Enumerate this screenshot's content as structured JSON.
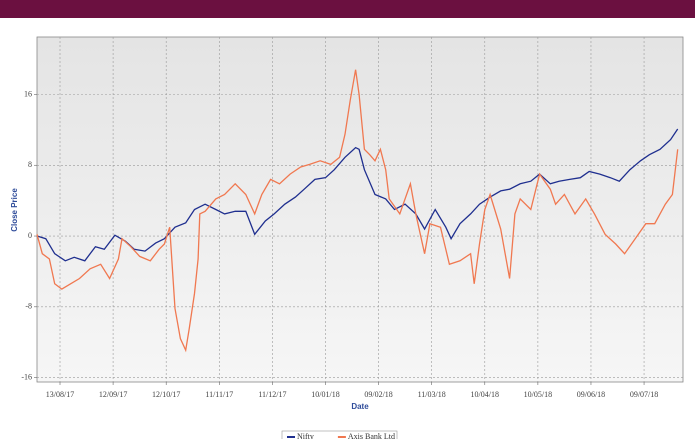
{
  "chart_data": {
    "type": "line",
    "x_label": "Date",
    "y_label": "Close Price",
    "xlim": [
      0,
      365
    ],
    "ylim": [
      -16.5,
      22.5
    ],
    "yticks": [
      16,
      8,
      0,
      -8,
      -16
    ],
    "xticks": [
      {
        "value": 13,
        "label": "13/08/17"
      },
      {
        "value": 43,
        "label": "12/09/17"
      },
      {
        "value": 73,
        "label": "12/10/17"
      },
      {
        "value": 103,
        "label": "11/11/17"
      },
      {
        "value": 133,
        "label": "11/12/17"
      },
      {
        "value": 163,
        "label": "10/01/18"
      },
      {
        "value": 193,
        "label": "09/02/18"
      },
      {
        "value": 223,
        "label": "11/03/18"
      },
      {
        "value": 253,
        "label": "10/04/18"
      },
      {
        "value": 283,
        "label": "10/05/18"
      },
      {
        "value": 313,
        "label": "09/06/18"
      },
      {
        "value": 343,
        "label": "09/07/18"
      }
    ],
    "grid": true,
    "legend": "bottom",
    "series": [
      {
        "name": "Nifty",
        "color": "#1f2f8f",
        "x": [
          0,
          5,
          10,
          16,
          21,
          27,
          33,
          38,
          44,
          50,
          55,
          61,
          67,
          72,
          78,
          84,
          89,
          95,
          101,
          106,
          112,
          118,
          123,
          129,
          134,
          140,
          146,
          151,
          157,
          163,
          168,
          174,
          180,
          182,
          185,
          191,
          197,
          202,
          208,
          214,
          219,
          225,
          231,
          234,
          239,
          245,
          250,
          256,
          262,
          267,
          273,
          279,
          284,
          290,
          295,
          301,
          307,
          312,
          318,
          324,
          329,
          335,
          341,
          346,
          352,
          358,
          362
        ],
        "values": [
          0,
          -0.3,
          -2.0,
          -2.8,
          -2.4,
          -2.8,
          -1.2,
          -1.5,
          0.1,
          -0.6,
          -1.5,
          -1.7,
          -0.8,
          -0.3,
          1.0,
          1.5,
          3.0,
          3.6,
          3.0,
          2.5,
          2.8,
          2.8,
          0.2,
          1.7,
          2.5,
          3.6,
          4.4,
          5.3,
          6.4,
          6.6,
          7.5,
          8.9,
          10.0,
          9.8,
          7.5,
          4.7,
          4.2,
          3.0,
          3.6,
          2.5,
          0.8,
          3.0,
          1.0,
          -0.3,
          1.4,
          2.5,
          3.6,
          4.4,
          5.1,
          5.3,
          5.9,
          6.2,
          7.0,
          5.9,
          6.2,
          6.4,
          6.6,
          7.3,
          7.0,
          6.6,
          6.2,
          7.5,
          8.5,
          9.2,
          9.8,
          10.9,
          12.1
        ]
      },
      {
        "name": "Axis Bank Ltd",
        "color": "#f07850",
        "x": [
          0,
          3,
          7,
          10,
          14,
          19,
          24,
          30,
          36,
          41,
          46,
          48,
          53,
          58,
          64,
          69,
          72,
          75,
          78,
          81,
          84,
          86,
          89,
          91,
          92,
          95,
          101,
          106,
          112,
          118,
          123,
          127,
          132,
          137,
          143,
          149,
          154,
          160,
          166,
          171,
          174,
          177,
          180,
          182,
          185,
          188,
          191,
          194,
          197,
          199,
          205,
          211,
          214,
          219,
          222,
          228,
          233,
          239,
          245,
          247,
          250,
          253,
          256,
          262,
          267,
          270,
          273,
          279,
          284,
          290,
          293,
          298,
          304,
          310,
          315,
          321,
          327,
          332,
          338,
          344,
          349,
          355,
          359,
          362
        ],
        "values": [
          0.2,
          -2.0,
          -2.6,
          -5.4,
          -6.0,
          -5.4,
          -4.8,
          -3.7,
          -3.2,
          -4.8,
          -2.6,
          -0.3,
          -1.2,
          -2.3,
          -2.8,
          -1.5,
          -0.9,
          1.0,
          -8.2,
          -11.6,
          -12.9,
          -10.5,
          -6.5,
          -2.6,
          2.5,
          2.8,
          4.2,
          4.7,
          5.9,
          4.7,
          2.5,
          4.7,
          6.4,
          5.9,
          7.0,
          7.8,
          8.1,
          8.5,
          8.1,
          8.9,
          11.5,
          15.4,
          18.8,
          16.0,
          9.8,
          9.2,
          8.5,
          9.8,
          7.5,
          4.2,
          2.5,
          5.9,
          2.5,
          -2.0,
          1.4,
          1.0,
          -3.2,
          -2.8,
          -2.0,
          -5.4,
          -0.9,
          3.0,
          4.7,
          0.8,
          -4.8,
          2.5,
          4.2,
          3.0,
          7.0,
          5.3,
          3.6,
          4.7,
          2.5,
          4.2,
          2.5,
          0.2,
          -0.9,
          -2.0,
          -0.3,
          1.4,
          1.4,
          3.6,
          4.7,
          9.8
        ]
      }
    ]
  }
}
